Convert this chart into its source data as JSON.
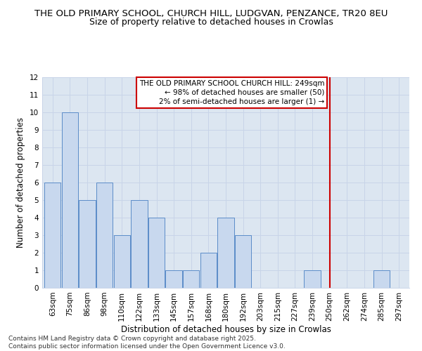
{
  "title1": "THE OLD PRIMARY SCHOOL, CHURCH HILL, LUDGVAN, PENZANCE, TR20 8EU",
  "title2": "Size of property relative to detached houses in Crowlas",
  "xlabel": "Distribution of detached houses by size in Crowlas",
  "ylabel": "Number of detached properties",
  "categories": [
    "63sqm",
    "75sqm",
    "86sqm",
    "98sqm",
    "110sqm",
    "122sqm",
    "133sqm",
    "145sqm",
    "157sqm",
    "168sqm",
    "180sqm",
    "192sqm",
    "203sqm",
    "215sqm",
    "227sqm",
    "239sqm",
    "250sqm",
    "262sqm",
    "274sqm",
    "285sqm",
    "297sqm"
  ],
  "values": [
    6,
    10,
    5,
    6,
    3,
    5,
    4,
    1,
    1,
    2,
    4,
    3,
    0,
    0,
    0,
    1,
    0,
    0,
    0,
    1,
    0
  ],
  "bar_color": "#c8d8ee",
  "bar_edge_color": "#5b8cc8",
  "marker_index": 16,
  "marker_color": "#cc0000",
  "annotation_text": "THE OLD PRIMARY SCHOOL CHURCH HILL: 249sqm\n← 98% of detached houses are smaller (50)\n2% of semi-detached houses are larger (1) →",
  "annotation_box_color": "#ffffff",
  "annotation_box_edge": "#cc0000",
  "ylim": [
    0,
    12
  ],
  "yticks": [
    0,
    1,
    2,
    3,
    4,
    5,
    6,
    7,
    8,
    9,
    10,
    11,
    12
  ],
  "grid_color": "#c8d4e8",
  "background_color": "#dce6f1",
  "footer": "Contains HM Land Registry data © Crown copyright and database right 2025.\nContains public sector information licensed under the Open Government Licence v3.0.",
  "title_fontsize": 9.5,
  "subtitle_fontsize": 9,
  "axis_label_fontsize": 8.5,
  "tick_fontsize": 7.5,
  "annotation_fontsize": 7.5,
  "footer_fontsize": 6.5
}
